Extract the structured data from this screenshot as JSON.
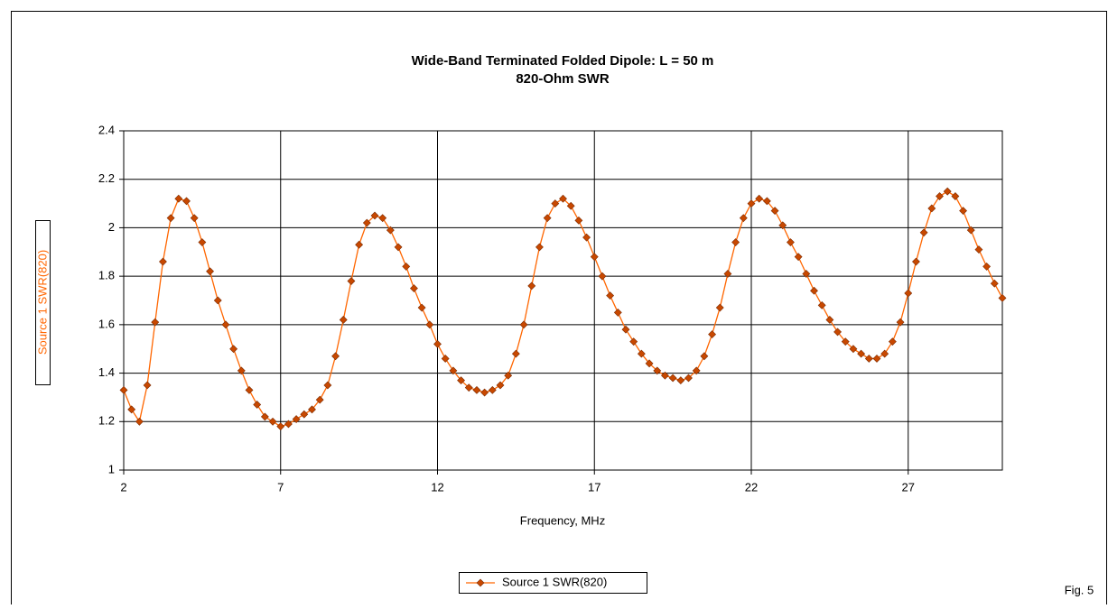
{
  "chart_data": {
    "type": "line",
    "title": "Wide-Band Terminated Folded Dipole: L = 50 m",
    "subtitle": "820-Ohm SWR",
    "x_label": "Frequency, MHz",
    "y_label": "Source 1 SWR(820)",
    "figure_label": "Fig. 5",
    "x": [
      2,
      2.25,
      2.5,
      2.75,
      3,
      3.25,
      3.5,
      3.75,
      4,
      4.25,
      4.5,
      4.75,
      5,
      5.25,
      5.5,
      5.75,
      6,
      6.25,
      6.5,
      6.75,
      7,
      7.25,
      7.5,
      7.75,
      8,
      8.25,
      8.5,
      8.75,
      9,
      9.25,
      9.5,
      9.75,
      10,
      10.25,
      10.5,
      10.75,
      11,
      11.25,
      11.5,
      11.75,
      12,
      12.25,
      12.5,
      12.75,
      13,
      13.25,
      13.5,
      13.75,
      14,
      14.25,
      14.5,
      14.75,
      15,
      15.25,
      15.5,
      15.75,
      16,
      16.25,
      16.5,
      16.75,
      17,
      17.25,
      17.5,
      17.75,
      18,
      18.25,
      18.5,
      18.75,
      19,
      19.25,
      19.5,
      19.75,
      20,
      20.25,
      20.5,
      20.75,
      21,
      21.25,
      21.5,
      21.75,
      22,
      22.25,
      22.5,
      22.75,
      23,
      23.25,
      23.5,
      23.75,
      24,
      24.25,
      24.5,
      24.75,
      25,
      25.25,
      25.5,
      25.75,
      26,
      26.25,
      26.5,
      26.75,
      27,
      27.25,
      27.5,
      27.75,
      28,
      28.25,
      28.5,
      28.75,
      29,
      29.25,
      29.5,
      29.75,
      30
    ],
    "series": [
      {
        "name": "Source 1 SWR(820)",
        "color": "#ff6600",
        "marker_color": "#c84800",
        "values": [
          1.33,
          1.25,
          1.2,
          1.35,
          1.61,
          1.86,
          2.04,
          2.12,
          2.11,
          2.04,
          1.94,
          1.82,
          1.7,
          1.6,
          1.5,
          1.41,
          1.33,
          1.27,
          1.22,
          1.2,
          1.18,
          1.19,
          1.21,
          1.23,
          1.25,
          1.29,
          1.35,
          1.47,
          1.62,
          1.78,
          1.93,
          2.02,
          2.05,
          2.04,
          1.99,
          1.92,
          1.84,
          1.75,
          1.67,
          1.6,
          1.52,
          1.46,
          1.41,
          1.37,
          1.34,
          1.33,
          1.32,
          1.33,
          1.35,
          1.39,
          1.48,
          1.6,
          1.76,
          1.92,
          2.04,
          2.1,
          2.12,
          2.09,
          2.03,
          1.96,
          1.88,
          1.8,
          1.72,
          1.65,
          1.58,
          1.53,
          1.48,
          1.44,
          1.41,
          1.39,
          1.38,
          1.37,
          1.38,
          1.41,
          1.47,
          1.56,
          1.67,
          1.81,
          1.94,
          2.04,
          2.1,
          2.12,
          2.11,
          2.07,
          2.01,
          1.94,
          1.88,
          1.81,
          1.74,
          1.68,
          1.62,
          1.57,
          1.53,
          1.5,
          1.48,
          1.46,
          1.46,
          1.48,
          1.53,
          1.61,
          1.73,
          1.86,
          1.98,
          2.08,
          2.13,
          2.15,
          2.13,
          2.07,
          1.99,
          1.91,
          1.84,
          1.77,
          1.71
        ]
      }
    ],
    "xlim": [
      2,
      30
    ],
    "xticks": [
      2,
      7,
      12,
      17,
      22,
      27
    ],
    "ylim": [
      1,
      2.4
    ],
    "yticks": [
      1,
      1.2,
      1.4,
      1.6,
      1.8,
      2,
      2.2,
      2.4
    ],
    "grid": true,
    "legend_position": "bottom"
  }
}
